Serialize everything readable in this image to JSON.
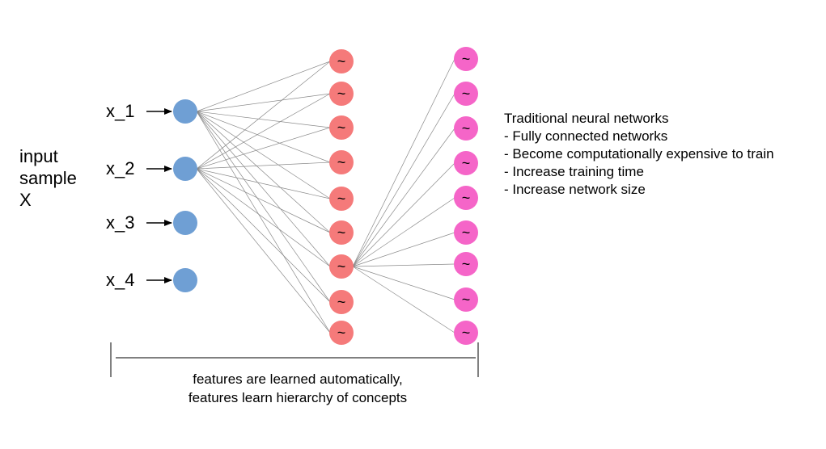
{
  "input_sample": {
    "lines": [
      "input",
      "sample",
      "X"
    ]
  },
  "input_nodes": [
    {
      "label": "x_1"
    },
    {
      "label": "x_2"
    },
    {
      "label": "x_3"
    },
    {
      "label": "x_4"
    }
  ],
  "hidden_layer_1": {
    "count": 9,
    "symbol": "~",
    "color": "#f57a7a"
  },
  "hidden_layer_2": {
    "count": 9,
    "symbol": "~",
    "color": "#f565c8"
  },
  "input_color": "#6f9fd4",
  "notes": {
    "title": "Traditional neural networks",
    "items": [
      "- Fully connected networks",
      "- Become computationally expensive to train",
      "- Increase training time",
      "- Increase network size"
    ]
  },
  "caption": {
    "lines": [
      "features are learned automatically,",
      "features learn hierarchy of concepts"
    ]
  }
}
